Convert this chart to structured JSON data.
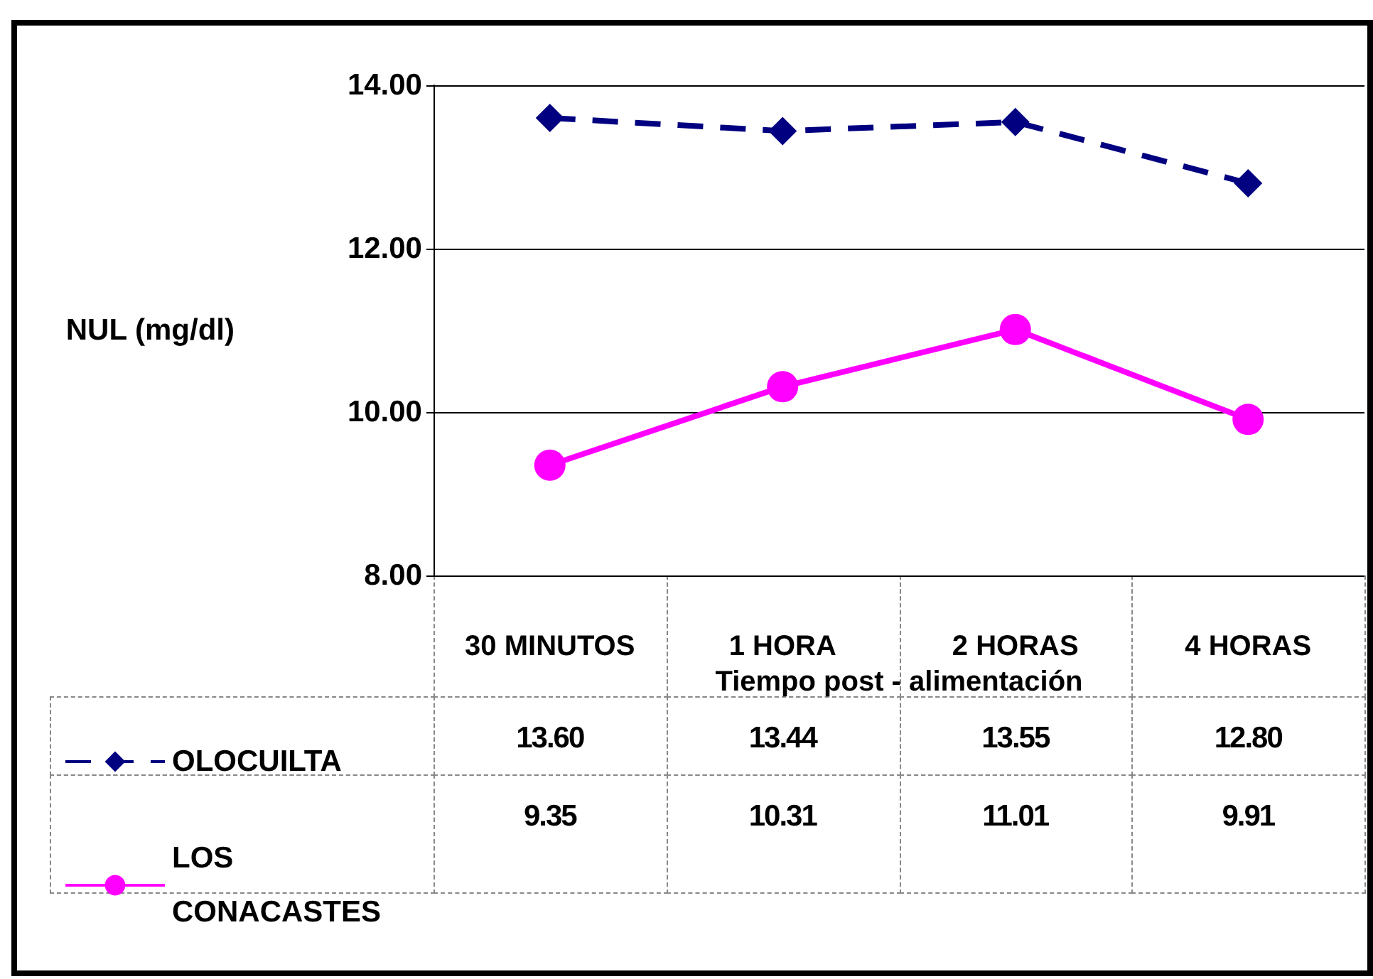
{
  "chart_data": {
    "type": "line",
    "ylabel": "NUL (mg/dl)",
    "xlabel": "Tiempo post - alimentación",
    "categories": [
      "30 MINUTOS",
      "1 HORA",
      "2 HORAS",
      "4 HORAS"
    ],
    "series": [
      {
        "name": "OLOCUILTA",
        "color": "#000080",
        "values": [
          13.6,
          13.44,
          13.55,
          12.8
        ],
        "value_labels": [
          "13.60",
          "13.44",
          "13.55",
          "12.80"
        ],
        "marker": "diamond",
        "line_style": "dashed"
      },
      {
        "name": "LOS CONACASTES",
        "color": "#ff00ff",
        "values": [
          9.35,
          10.31,
          11.01,
          9.91
        ],
        "value_labels": [
          "9.35",
          "10.31",
          "11.01",
          "9.91"
        ],
        "marker": "circle",
        "line_style": "solid"
      }
    ],
    "ylim": [
      8,
      14
    ],
    "yticks": [
      {
        "value": 8,
        "label": "8.00"
      },
      {
        "value": 10,
        "label": "10.00"
      },
      {
        "value": 12,
        "label": "12.00"
      },
      {
        "value": 14,
        "label": "14.00"
      }
    ],
    "grid": "y",
    "legend": "bottom"
  }
}
